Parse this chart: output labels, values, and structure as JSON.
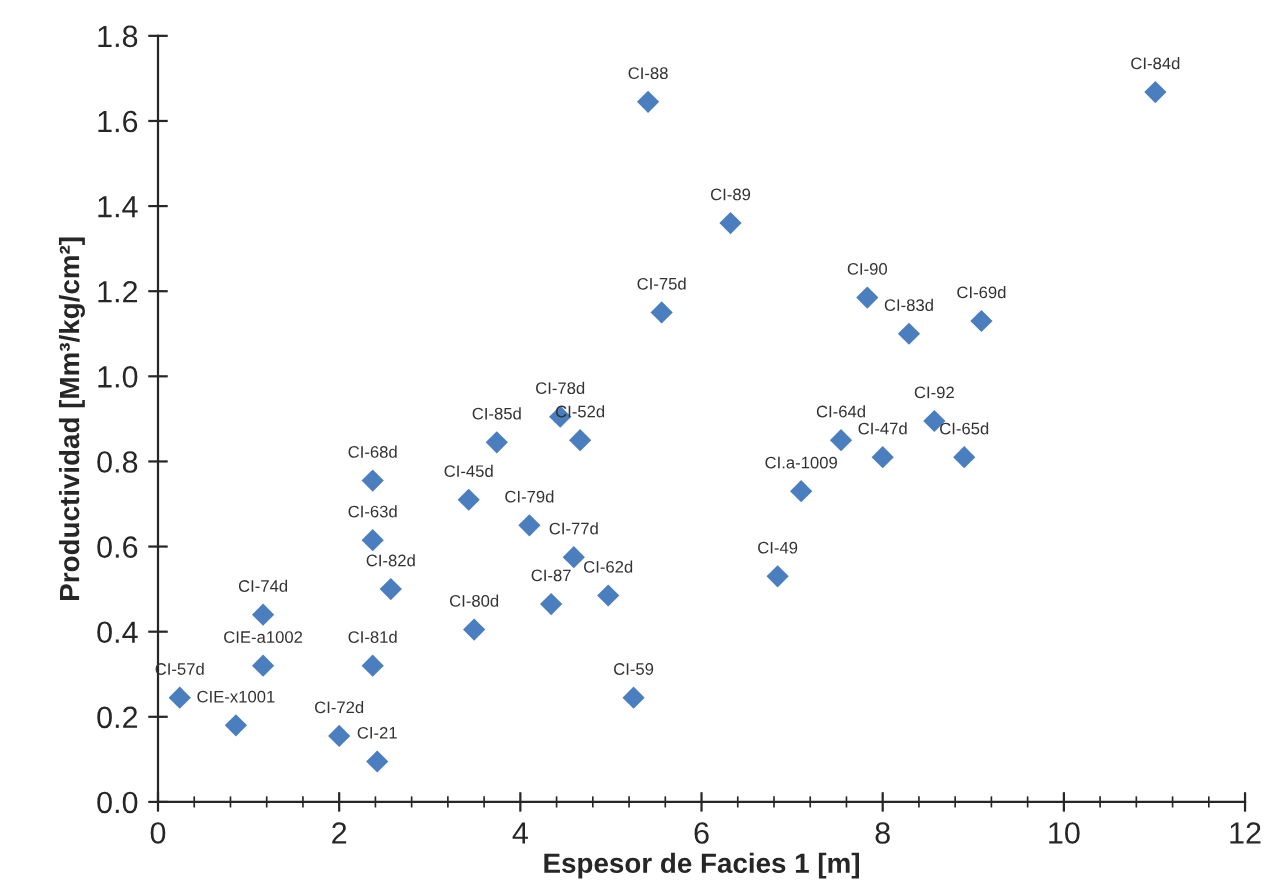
{
  "chart_data": {
    "type": "scatter",
    "xlabel": "Espesor de Facies 1 [m]",
    "ylabel": "Productividad [Mm³/kg/cm²]",
    "x": [
      0.24,
      0.86,
      1.16,
      1.16,
      2.0,
      2.42,
      2.37,
      2.57,
      2.37,
      2.37,
      3.43,
      3.74,
      4.44,
      4.66,
      4.1,
      4.59,
      4.97,
      4.34,
      3.49,
      5.25,
      5.41,
      6.32,
      5.56,
      7.1,
      6.84,
      7.54,
      8.0,
      8.57,
      8.9,
      7.83,
      8.29,
      9.09,
      11.01
    ],
    "series": [
      {
        "color": "#4a7ebf",
        "values": [
          0.245,
          0.18,
          0.32,
          0.44,
          0.155,
          0.095,
          0.32,
          0.5,
          0.615,
          0.755,
          0.71,
          0.845,
          0.905,
          0.85,
          0.65,
          0.575,
          0.485,
          0.465,
          0.405,
          0.245,
          1.645,
          1.36,
          1.15,
          0.73,
          0.53,
          0.85,
          0.81,
          0.895,
          0.81,
          1.185,
          1.1,
          1.13,
          1.668
        ]
      }
    ],
    "annotations": [
      {
        "text": "CI-57d",
        "x": 0.24,
        "y": 0.245
      },
      {
        "text": "CIE-x1001",
        "x": 0.86,
        "y": 0.18
      },
      {
        "text": "CIE-a1002",
        "x": 1.16,
        "y": 0.32
      },
      {
        "text": "CI-74d",
        "x": 1.16,
        "y": 0.44
      },
      {
        "text": "CI-72d",
        "x": 2.0,
        "y": 0.155
      },
      {
        "text": "CI-21",
        "x": 2.42,
        "y": 0.095
      },
      {
        "text": "CI-81d",
        "x": 2.37,
        "y": 0.32
      },
      {
        "text": "CI-82d",
        "x": 2.57,
        "y": 0.5
      },
      {
        "text": "CI-63d",
        "x": 2.37,
        "y": 0.615
      },
      {
        "text": "CI-68d",
        "x": 2.37,
        "y": 0.755
      },
      {
        "text": "CI-45d",
        "x": 3.43,
        "y": 0.71
      },
      {
        "text": "CI-85d",
        "x": 3.74,
        "y": 0.845
      },
      {
        "text": "CI-78d",
        "x": 4.44,
        "y": 0.905
      },
      {
        "text": "CI-52d",
        "x": 4.66,
        "y": 0.85
      },
      {
        "text": "CI-79d",
        "x": 4.1,
        "y": 0.65
      },
      {
        "text": "CI-77d",
        "x": 4.59,
        "y": 0.575
      },
      {
        "text": "CI-62d",
        "x": 4.97,
        "y": 0.485
      },
      {
        "text": "CI-87",
        "x": 4.34,
        "y": 0.465
      },
      {
        "text": "CI-80d",
        "x": 3.49,
        "y": 0.405
      },
      {
        "text": "CI-59",
        "x": 5.25,
        "y": 0.245
      },
      {
        "text": "CI-88",
        "x": 5.41,
        "y": 1.645
      },
      {
        "text": "CI-89",
        "x": 6.32,
        "y": 1.36
      },
      {
        "text": "CI-75d",
        "x": 5.56,
        "y": 1.15
      },
      {
        "text": "CI.a-1009",
        "x": 7.1,
        "y": 0.73
      },
      {
        "text": "CI-49",
        "x": 6.84,
        "y": 0.53
      },
      {
        "text": "CI-64d",
        "x": 7.54,
        "y": 0.85
      },
      {
        "text": "CI-47d",
        "x": 8.0,
        "y": 0.81
      },
      {
        "text": "CI-92",
        "x": 8.57,
        "y": 0.895
      },
      {
        "text": "CI-65d",
        "x": 8.9,
        "y": 0.81
      },
      {
        "text": "CI-90",
        "x": 7.83,
        "y": 1.185
      },
      {
        "text": "CI-83d",
        "x": 8.29,
        "y": 1.1
      },
      {
        "text": "CI-69d",
        "x": 9.09,
        "y": 1.13
      },
      {
        "text": "CI-84d",
        "x": 11.01,
        "y": 1.668
      }
    ],
    "xlim": [
      0,
      12
    ],
    "xticks": [
      0,
      2,
      4,
      6,
      8,
      10,
      12
    ],
    "ylim": [
      0,
      1.8
    ],
    "yticks": [
      {
        "value": 0,
        "label": "0.0"
      },
      0.2,
      0.4,
      0.6,
      0.8,
      {
        "value": 1,
        "label": "1.0"
      },
      1.2,
      1.4,
      1.6,
      1.8
    ],
    "marker": "diamond",
    "grid": false,
    "legend": false
  }
}
